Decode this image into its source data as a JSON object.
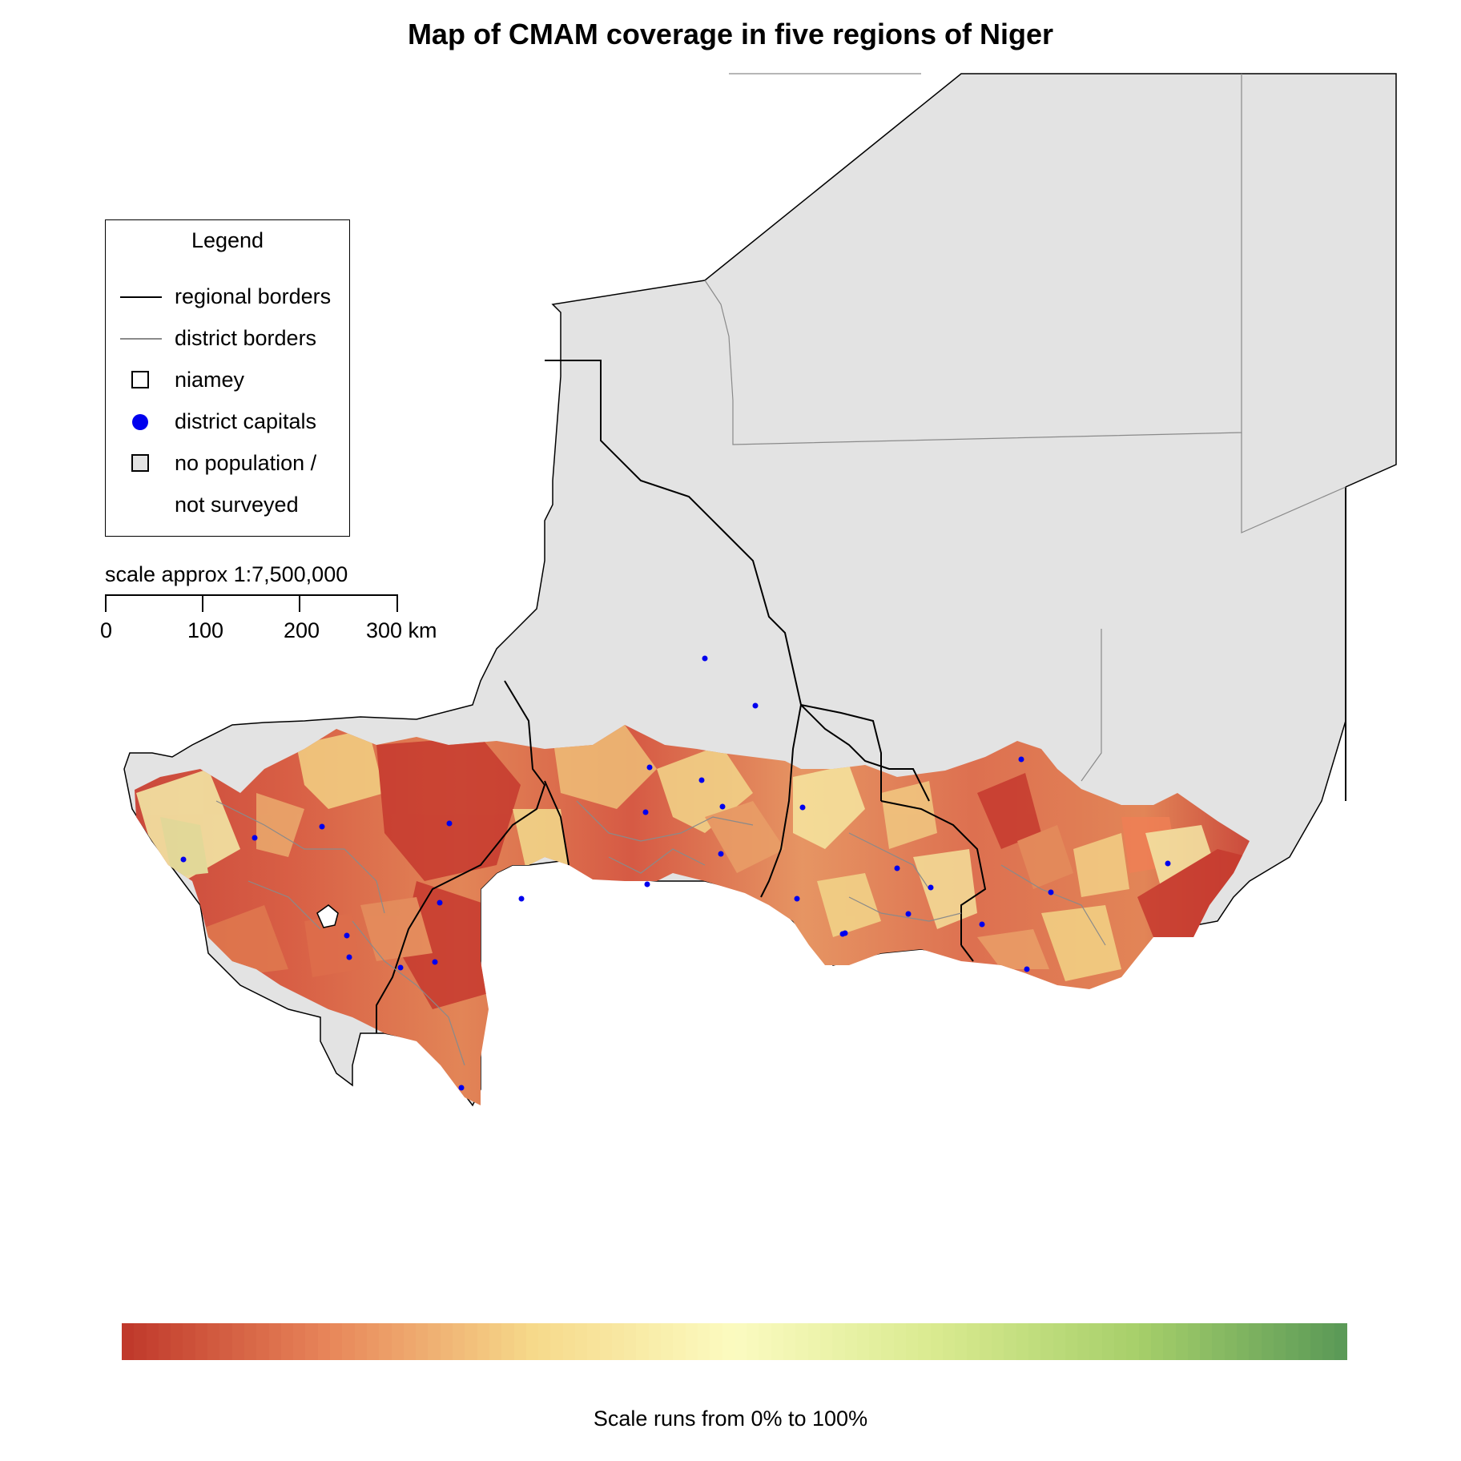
{
  "title": "Map of CMAM coverage in five regions of Niger",
  "legend": {
    "title": "Legend",
    "items": [
      {
        "symbol": "black-line",
        "label": "regional borders"
      },
      {
        "symbol": "grey-line",
        "label": "district borders"
      },
      {
        "symbol": "white-square",
        "label": "niamey"
      },
      {
        "symbol": "blue-dot",
        "label": "district capitals"
      },
      {
        "symbol": "grey-square",
        "label": "no population /"
      },
      {
        "symbol": "none",
        "label": "not surveyed"
      }
    ]
  },
  "scale": {
    "title": "scale approx 1:7,500,000",
    "ticks": [
      "0",
      "100",
      "200",
      "300 km"
    ]
  },
  "colorbar": {
    "caption": "Scale runs from 0% to 100%",
    "colors": [
      "#c0392b",
      "#e8865a",
      "#f6d98a",
      "#fbfbc0",
      "#d9ea8f",
      "#a6cf6a",
      "#5b9a57"
    ],
    "min": 0,
    "max": 100,
    "unit": "%"
  },
  "colors": {
    "no_population": "#e3e3e3",
    "regional_border": "#000000",
    "district_border": "#8a8a8a",
    "district_capital": "#0000ee"
  }
}
